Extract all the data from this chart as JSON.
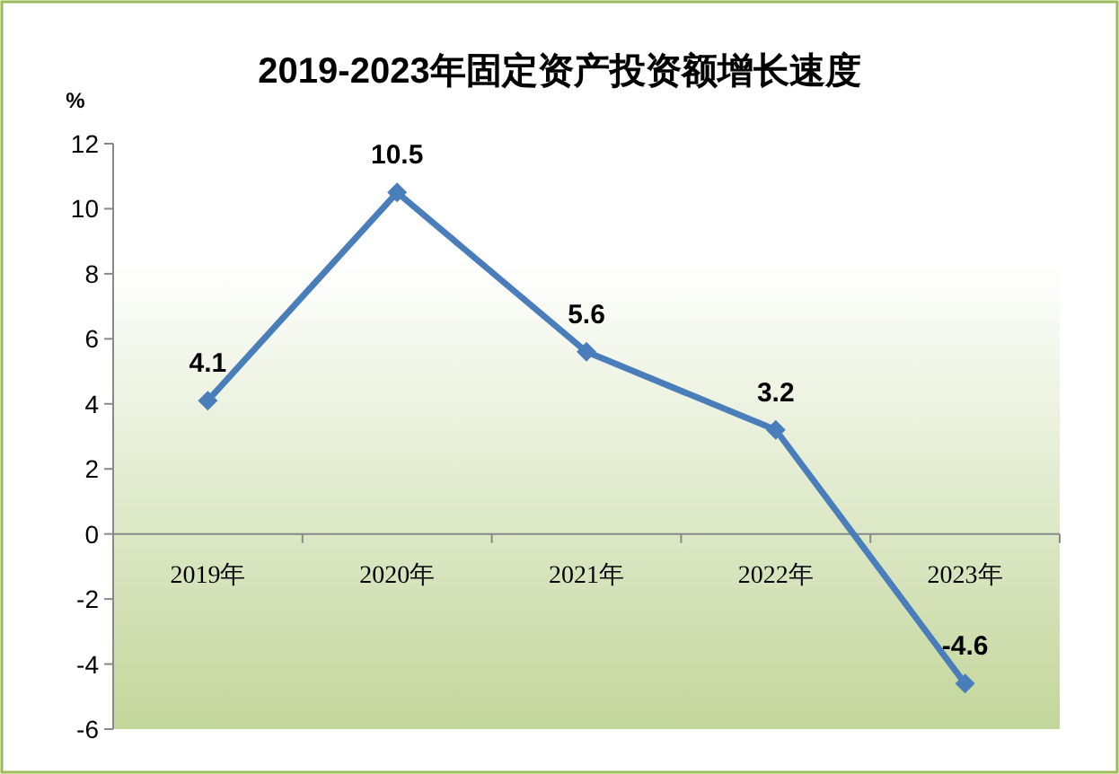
{
  "chart_data": {
    "type": "line",
    "title": "2019-2023年固定资产投资额增长速度",
    "ylabel": "%",
    "categories": [
      "2019年",
      "2020年",
      "2021年",
      "2022年",
      "2023年"
    ],
    "series": [
      {
        "color": "#4a7ebb",
        "values": [
          4.1,
          10.5,
          5.6,
          3.2,
          -4.6
        ]
      }
    ],
    "ylim": [
      -6,
      12
    ],
    "yticks": [
      -6,
      -4,
      -2,
      0,
      2,
      4,
      6,
      8,
      10,
      12
    ],
    "data_labels": true,
    "marker": "diamond",
    "grid": false
  }
}
